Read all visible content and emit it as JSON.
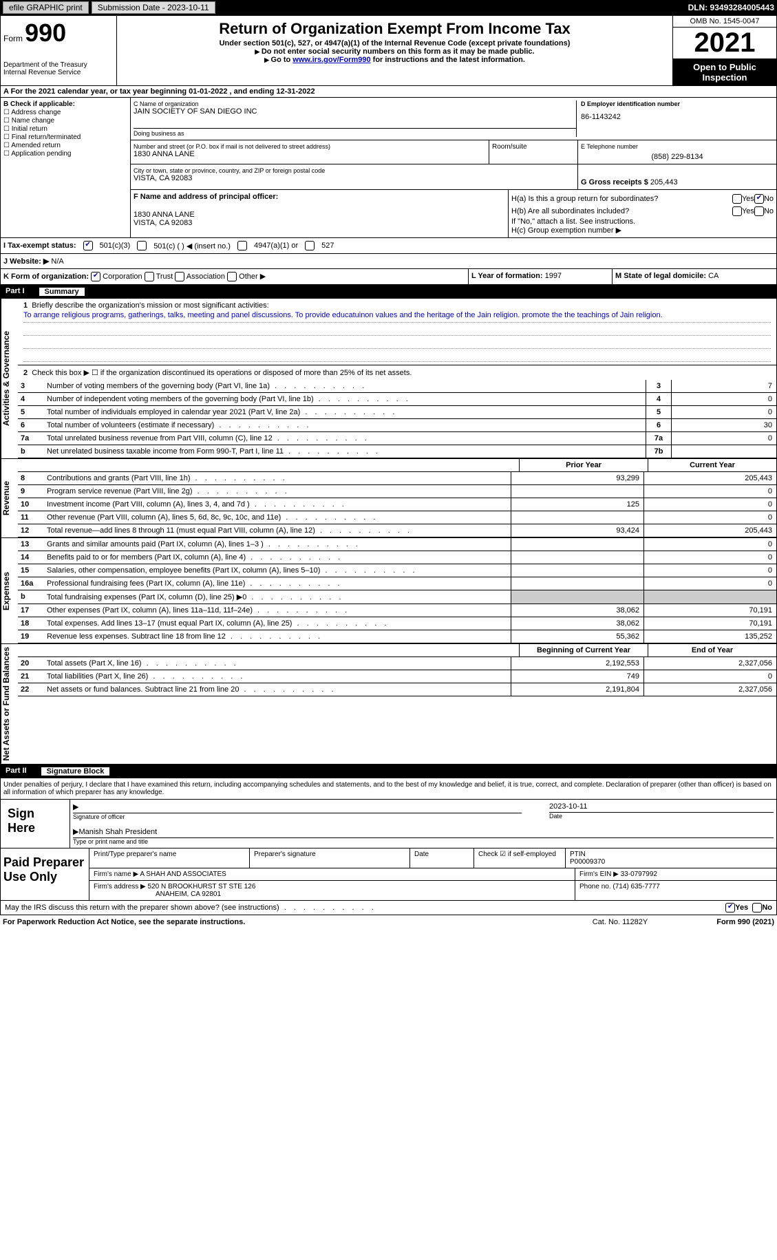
{
  "topbar": {
    "efile": "efile GRAPHIC print",
    "submission": "Submission Date - 2023-10-11",
    "dln": "DLN: 93493284005443"
  },
  "header": {
    "form_prefix": "Form",
    "form_number": "990",
    "dept": "Department of the Treasury",
    "irs": "Internal Revenue Service",
    "title": "Return of Organization Exempt From Income Tax",
    "subtitle": "Under section 501(c), 527, or 4947(a)(1) of the Internal Revenue Code (except private foundations)",
    "note1": "Do not enter social security numbers on this form as it may be made public.",
    "note2_prefix": "Go to ",
    "note2_link": "www.irs.gov/Form990",
    "note2_suffix": " for instructions and the latest information.",
    "omb": "OMB No. 1545-0047",
    "year": "2021",
    "open": "Open to Public Inspection"
  },
  "section_a": {
    "text": "A For the 2021 calendar year, or tax year beginning 01-01-2022    , and ending 12-31-2022"
  },
  "section_b": {
    "title": "B Check if applicable:",
    "items": [
      "Address change",
      "Name change",
      "Initial return",
      "Final return/terminated",
      "Amended return",
      "Application pending"
    ]
  },
  "section_c": {
    "name_label": "C Name of organization",
    "name": "JAIN SOCIETY OF SAN DIEGO INC",
    "dba_label": "Doing business as",
    "addr_label": "Number and street (or P.O. box if mail is not delivered to street address)",
    "addr": "1830 ANNA LANE",
    "room_label": "Room/suite",
    "city_label": "City or town, state or province, country, and ZIP or foreign postal code",
    "city": "VISTA, CA  92083"
  },
  "section_d": {
    "ein_label": "D Employer identification number",
    "ein": "86-1143242",
    "phone_label": "E Telephone number",
    "phone": "(858) 229-8134",
    "gross_label": "G Gross receipts $",
    "gross": "205,443"
  },
  "section_f": {
    "label": "F  Name and address of principal officer:",
    "addr1": "1830 ANNA LANE",
    "addr2": "VISTA, CA  92083"
  },
  "section_h": {
    "ha": "H(a)  Is this a group return for subordinates?",
    "hb": "H(b)  Are all subordinates included?",
    "hb_note": "If \"No,\" attach a list. See instructions.",
    "hc": "H(c)  Group exemption number ▶"
  },
  "section_i": {
    "label": "I    Tax-exempt status:",
    "opt1": "501(c)(3)",
    "opt2": "501(c) (   ) ◀ (insert no.)",
    "opt3": "4947(a)(1) or",
    "opt4": "527"
  },
  "section_j": {
    "label": "J   Website: ▶",
    "value": "N/A"
  },
  "section_k": {
    "label": "K Form of organization:",
    "opts": [
      "Corporation",
      "Trust",
      "Association",
      "Other ▶"
    ],
    "l_label": "L Year of formation:",
    "l_val": "1997",
    "m_label": "M State of legal domicile:",
    "m_val": "CA"
  },
  "part1": {
    "num": "Part I",
    "title": "Summary",
    "line1_label": "Briefly describe the organization's mission or most significant activities:",
    "line1_text": "To arrange religious programs, gatherings, talks, meeting and panel discussions. To provide educatuinon values and the heritage of the Jain religion. promote the the teachings of Jain religion.",
    "line2": "Check this box ▶ ☐  if the organization discontinued its operations or disposed of more than 25% of its net assets.",
    "tabs": {
      "a": "Activities & Governance",
      "r": "Revenue",
      "e": "Expenses",
      "n": "Net Assets or Fund Balances"
    },
    "lines_gov": [
      {
        "n": "3",
        "t": "Number of voting members of the governing body (Part VI, line 1a)",
        "box": "3",
        "v": "7"
      },
      {
        "n": "4",
        "t": "Number of independent voting members of the governing body (Part VI, line 1b)",
        "box": "4",
        "v": "0"
      },
      {
        "n": "5",
        "t": "Total number of individuals employed in calendar year 2021 (Part V, line 2a)",
        "box": "5",
        "v": "0"
      },
      {
        "n": "6",
        "t": "Total number of volunteers (estimate if necessary)",
        "box": "6",
        "v": "30"
      },
      {
        "n": "7a",
        "t": "Total unrelated business revenue from Part VIII, column (C), line 12",
        "box": "7a",
        "v": "0"
      },
      {
        "n": "b",
        "t": "Net unrelated business taxable income from Form 990-T, Part I, line 11",
        "box": "7b",
        "v": ""
      }
    ],
    "col_prior": "Prior Year",
    "col_current": "Current Year",
    "revenue": [
      {
        "n": "8",
        "t": "Contributions and grants (Part VIII, line 1h)",
        "p": "93,299",
        "c": "205,443"
      },
      {
        "n": "9",
        "t": "Program service revenue (Part VIII, line 2g)",
        "p": "",
        "c": "0"
      },
      {
        "n": "10",
        "t": "Investment income (Part VIII, column (A), lines 3, 4, and 7d )",
        "p": "125",
        "c": "0"
      },
      {
        "n": "11",
        "t": "Other revenue (Part VIII, column (A), lines 5, 6d, 8c, 9c, 10c, and 11e)",
        "p": "",
        "c": "0"
      },
      {
        "n": "12",
        "t": "Total revenue—add lines 8 through 11 (must equal Part VIII, column (A), line 12)",
        "p": "93,424",
        "c": "205,443"
      }
    ],
    "expenses": [
      {
        "n": "13",
        "t": "Grants and similar amounts paid (Part IX, column (A), lines 1–3 )",
        "p": "",
        "c": "0"
      },
      {
        "n": "14",
        "t": "Benefits paid to or for members (Part IX, column (A), line 4)",
        "p": "",
        "c": "0"
      },
      {
        "n": "15",
        "t": "Salaries, other compensation, employee benefits (Part IX, column (A), lines 5–10)",
        "p": "",
        "c": "0"
      },
      {
        "n": "16a",
        "t": "Professional fundraising fees (Part IX, column (A), line 11e)",
        "p": "",
        "c": "0"
      },
      {
        "n": "b",
        "t": "Total fundraising expenses (Part IX, column (D), line 25) ▶0",
        "p": "shaded",
        "c": "shaded"
      },
      {
        "n": "17",
        "t": "Other expenses (Part IX, column (A), lines 11a–11d, 11f–24e)",
        "p": "38,062",
        "c": "70,191"
      },
      {
        "n": "18",
        "t": "Total expenses. Add lines 13–17 (must equal Part IX, column (A), line 25)",
        "p": "38,062",
        "c": "70,191"
      },
      {
        "n": "19",
        "t": "Revenue less expenses. Subtract line 18 from line 12",
        "p": "55,362",
        "c": "135,252"
      }
    ],
    "col_begin": "Beginning of Current Year",
    "col_end": "End of Year",
    "netassets": [
      {
        "n": "20",
        "t": "Total assets (Part X, line 16)",
        "p": "2,192,553",
        "c": "2,327,056"
      },
      {
        "n": "21",
        "t": "Total liabilities (Part X, line 26)",
        "p": "749",
        "c": "0"
      },
      {
        "n": "22",
        "t": "Net assets or fund balances. Subtract line 21 from line 20",
        "p": "2,191,804",
        "c": "2,327,056"
      }
    ]
  },
  "part2": {
    "num": "Part II",
    "title": "Signature Block",
    "declaration": "Under penalties of perjury, I declare that I have examined this return, including accompanying schedules and statements, and to the best of my knowledge and belief, it is true, correct, and complete. Declaration of preparer (other than officer) is based on all information of which preparer has any knowledge.",
    "sign_here": "Sign Here",
    "sig_officer": "Signature of officer",
    "sig_date": "2023-10-11",
    "date": "Date",
    "officer_name": "Manish Shah President",
    "type_name": "Type or print name and title",
    "paid": "Paid Preparer Use Only",
    "prep_name_label": "Print/Type preparer's name",
    "prep_sig_label": "Preparer's signature",
    "prep_date_label": "Date",
    "check_se": "Check ☑ if self-employed",
    "ptin_label": "PTIN",
    "ptin": "P00009370",
    "firm_name_label": "Firm's name   ▶",
    "firm_name": "A SHAH AND ASSOCIATES",
    "firm_ein_label": "Firm's EIN ▶",
    "firm_ein": "33-0797992",
    "firm_addr_label": "Firm's address ▶",
    "firm_addr1": "520 N BROOKHURST ST STE 126",
    "firm_addr2": "ANAHEIM, CA  92801",
    "phone_label": "Phone no.",
    "phone": "(714) 635-7777",
    "discuss": "May the IRS discuss this return with the preparer shown above? (see instructions)"
  },
  "footer": {
    "paperwork": "For Paperwork Reduction Act Notice, see the separate instructions.",
    "cat": "Cat. No. 11282Y",
    "form": "Form 990 (2021)"
  }
}
